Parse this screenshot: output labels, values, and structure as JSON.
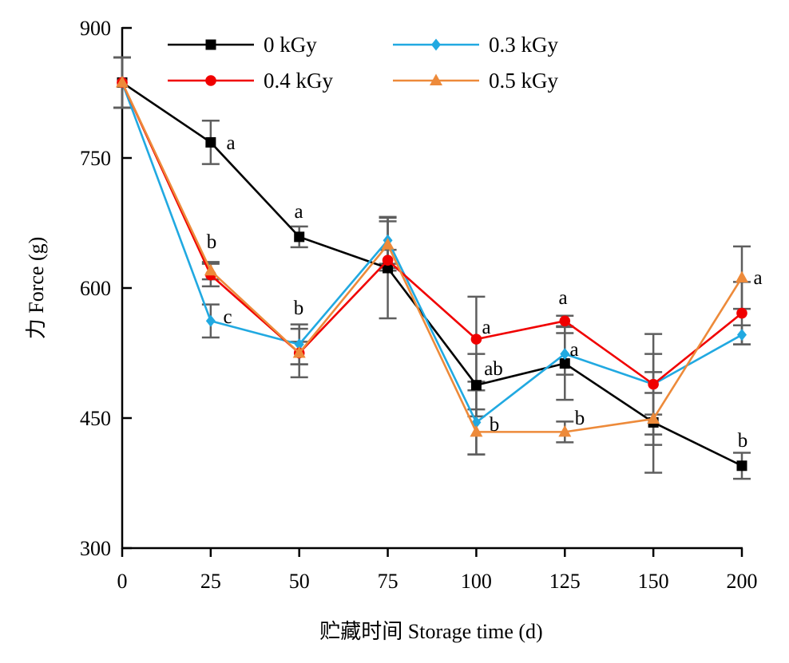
{
  "chart_data": {
    "type": "line",
    "categories": [
      "0",
      "25",
      "50",
      "75",
      "100",
      "125",
      "150",
      "200"
    ],
    "xlabel": "贮藏时间 Storage time (d)",
    "ylabel": "力 Force (g)",
    "ylim": [
      300,
      900
    ],
    "yticks": [
      300,
      450,
      600,
      750,
      900
    ],
    "grid": false,
    "legend_position": "top",
    "error_bar_color": "#5e5e5e",
    "series": [
      {
        "name": "0 kGy",
        "color": "#000000",
        "marker": "square",
        "values": [
          837,
          768,
          659,
          623,
          488,
          513,
          445,
          395
        ],
        "errors": [
          29,
          25,
          12,
          58,
          36,
          42,
          58,
          15
        ]
      },
      {
        "name": "0.3 kGy",
        "color": "#21A9E1",
        "marker": "diamond",
        "values": [
          837,
          562,
          535,
          655,
          445,
          524,
          489,
          546
        ],
        "errors": [
          29,
          19,
          23,
          27,
          37,
          24,
          58,
          11
        ]
      },
      {
        "name": "0.4 kGy",
        "color": "#F00000",
        "marker": "circle",
        "values": [
          837,
          615,
          525,
          632,
          541,
          562,
          489,
          571
        ],
        "errors": [
          29,
          13,
          13,
          12,
          49,
          6,
          35,
          36
        ]
      },
      {
        "name": "0.5 kGy",
        "color": "#ED8A3A",
        "marker": "triangle",
        "values": [
          837,
          620,
          525,
          650,
          434,
          434,
          449,
          612
        ],
        "errors": [
          29,
          10,
          28,
          27,
          26,
          12,
          30,
          36
        ]
      }
    ],
    "annotations": [
      {
        "x": "25",
        "text": "a"
      },
      {
        "x": "25",
        "text": "b"
      },
      {
        "x": "25",
        "text": "c"
      },
      {
        "x": "50",
        "text": "a"
      },
      {
        "x": "50",
        "text": "b"
      },
      {
        "x": "100",
        "text": "a"
      },
      {
        "x": "100",
        "text": "ab"
      },
      {
        "x": "100",
        "text": "b"
      },
      {
        "x": "125",
        "text": "a"
      },
      {
        "x": "125",
        "text": "a"
      },
      {
        "x": "125",
        "text": "b"
      },
      {
        "x": "200",
        "text": "a"
      },
      {
        "x": "200",
        "text": "b"
      }
    ]
  }
}
